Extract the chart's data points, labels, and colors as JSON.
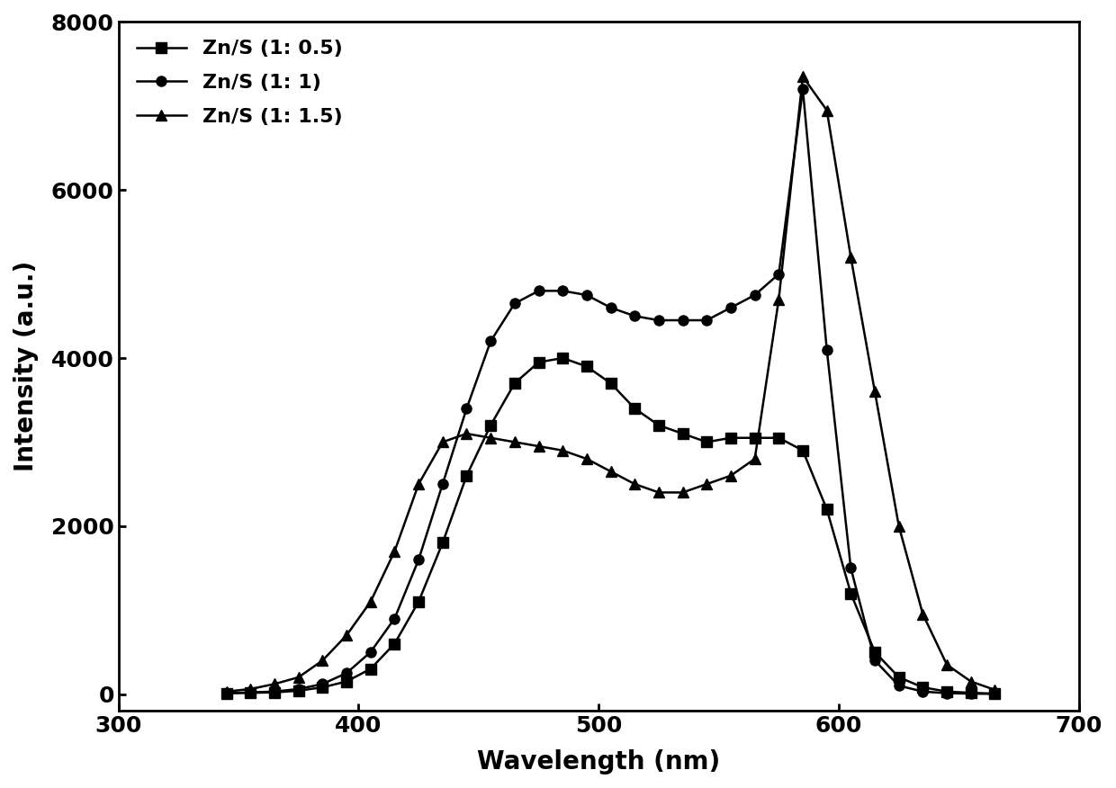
{
  "title": "",
  "xlabel": "Wavelength (nm)",
  "ylabel": "Intensity (a.u.)",
  "xlim": [
    300,
    700
  ],
  "ylim": [
    -200,
    8000
  ],
  "yticks": [
    0,
    2000,
    4000,
    6000,
    8000
  ],
  "xticks": [
    300,
    400,
    500,
    600,
    700
  ],
  "series": [
    {
      "label": "Zn/S (1: 0.5)",
      "marker": "s",
      "color": "#000000",
      "x": [
        345,
        355,
        365,
        375,
        385,
        395,
        405,
        415,
        425,
        435,
        445,
        455,
        465,
        475,
        485,
        495,
        505,
        515,
        525,
        535,
        545,
        555,
        565,
        575,
        585,
        595,
        605,
        615,
        625,
        635,
        645,
        655,
        665
      ],
      "y": [
        10,
        15,
        20,
        40,
        80,
        150,
        300,
        600,
        1100,
        1800,
        2600,
        3200,
        3700,
        3950,
        4000,
        3900,
        3700,
        3400,
        3200,
        3100,
        3000,
        3050,
        3050,
        3050,
        2900,
        2200,
        1200,
        500,
        200,
        80,
        30,
        15,
        5
      ]
    },
    {
      "label": "Zn/S (1: 1)",
      "marker": "o",
      "color": "#000000",
      "x": [
        345,
        355,
        365,
        375,
        385,
        395,
        405,
        415,
        425,
        435,
        445,
        455,
        465,
        475,
        485,
        495,
        505,
        515,
        525,
        535,
        545,
        555,
        565,
        575,
        585,
        595,
        605,
        615,
        625,
        635,
        645,
        655,
        665
      ],
      "y": [
        10,
        20,
        30,
        60,
        120,
        250,
        500,
        900,
        1600,
        2500,
        3400,
        4200,
        4650,
        4800,
        4800,
        4750,
        4600,
        4500,
        4450,
        4450,
        4450,
        4600,
        4750,
        5000,
        7200,
        4100,
        1500,
        400,
        100,
        30,
        10,
        5,
        2
      ]
    },
    {
      "label": "Zn/S (1: 1.5)",
      "marker": "^",
      "color": "#000000",
      "x": [
        345,
        355,
        365,
        375,
        385,
        395,
        405,
        415,
        425,
        435,
        445,
        455,
        465,
        475,
        485,
        495,
        505,
        515,
        525,
        535,
        545,
        555,
        565,
        575,
        585,
        595,
        605,
        615,
        625,
        635,
        645,
        655,
        665
      ],
      "y": [
        30,
        60,
        120,
        200,
        400,
        700,
        1100,
        1700,
        2500,
        3000,
        3100,
        3050,
        3000,
        2950,
        2900,
        2800,
        2650,
        2500,
        2400,
        2400,
        2500,
        2600,
        2800,
        4700,
        7350,
        6950,
        5200,
        3600,
        2000,
        950,
        350,
        150,
        50
      ]
    }
  ]
}
